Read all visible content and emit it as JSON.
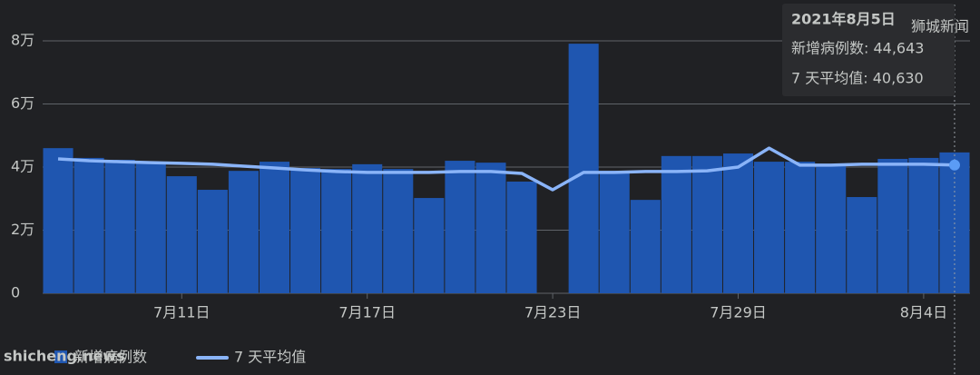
{
  "chart_data": {
    "type": "bar",
    "categories": [
      null,
      null,
      null,
      null,
      "7月11日",
      null,
      null,
      null,
      null,
      null,
      "7月17日",
      null,
      null,
      null,
      null,
      null,
      "7月23日",
      null,
      null,
      null,
      null,
      null,
      "7月29日",
      null,
      null,
      null,
      null,
      null,
      "8月4日",
      null
    ],
    "series": [
      {
        "name": "新增病例数",
        "type": "bar",
        "color": "#1f56b0",
        "values": [
          46000,
          42900,
          42300,
          41400,
          37100,
          32800,
          38800,
          41700,
          39700,
          39400,
          40900,
          39400,
          30200,
          42000,
          41400,
          35400,
          0,
          79100,
          38800,
          29600,
          43500,
          43500,
          44300,
          41700,
          41700,
          40300,
          30500,
          42600,
          42900,
          44643
        ]
      },
      {
        "name": "7 天平均值",
        "type": "line",
        "color": "#8ab4f8",
        "values": [
          42600,
          42000,
          41700,
          41400,
          41200,
          40900,
          40300,
          39700,
          39100,
          38600,
          38300,
          38300,
          38300,
          38600,
          38600,
          38000,
          32800,
          38300,
          38300,
          38600,
          38600,
          38800,
          40000,
          46000,
          40600,
          40600,
          40900,
          40900,
          40900,
          40630
        ]
      }
    ],
    "ylim": [
      0,
      80000
    ],
    "yticks": [
      0,
      {
        "value": 20000,
        "label": "2万"
      },
      {
        "value": 40000,
        "label": "4万"
      },
      {
        "value": 60000,
        "label": "6万"
      },
      {
        "value": 80000,
        "label": "8万"
      }
    ],
    "grid": true,
    "tooltip": {
      "title": "2021年8月5日",
      "lines": [
        "新增病例数: 44,643",
        "7 天平均值: 40,630"
      ]
    }
  },
  "watermarks": [
    "shicheng.news",
    "狮城新闻"
  ]
}
